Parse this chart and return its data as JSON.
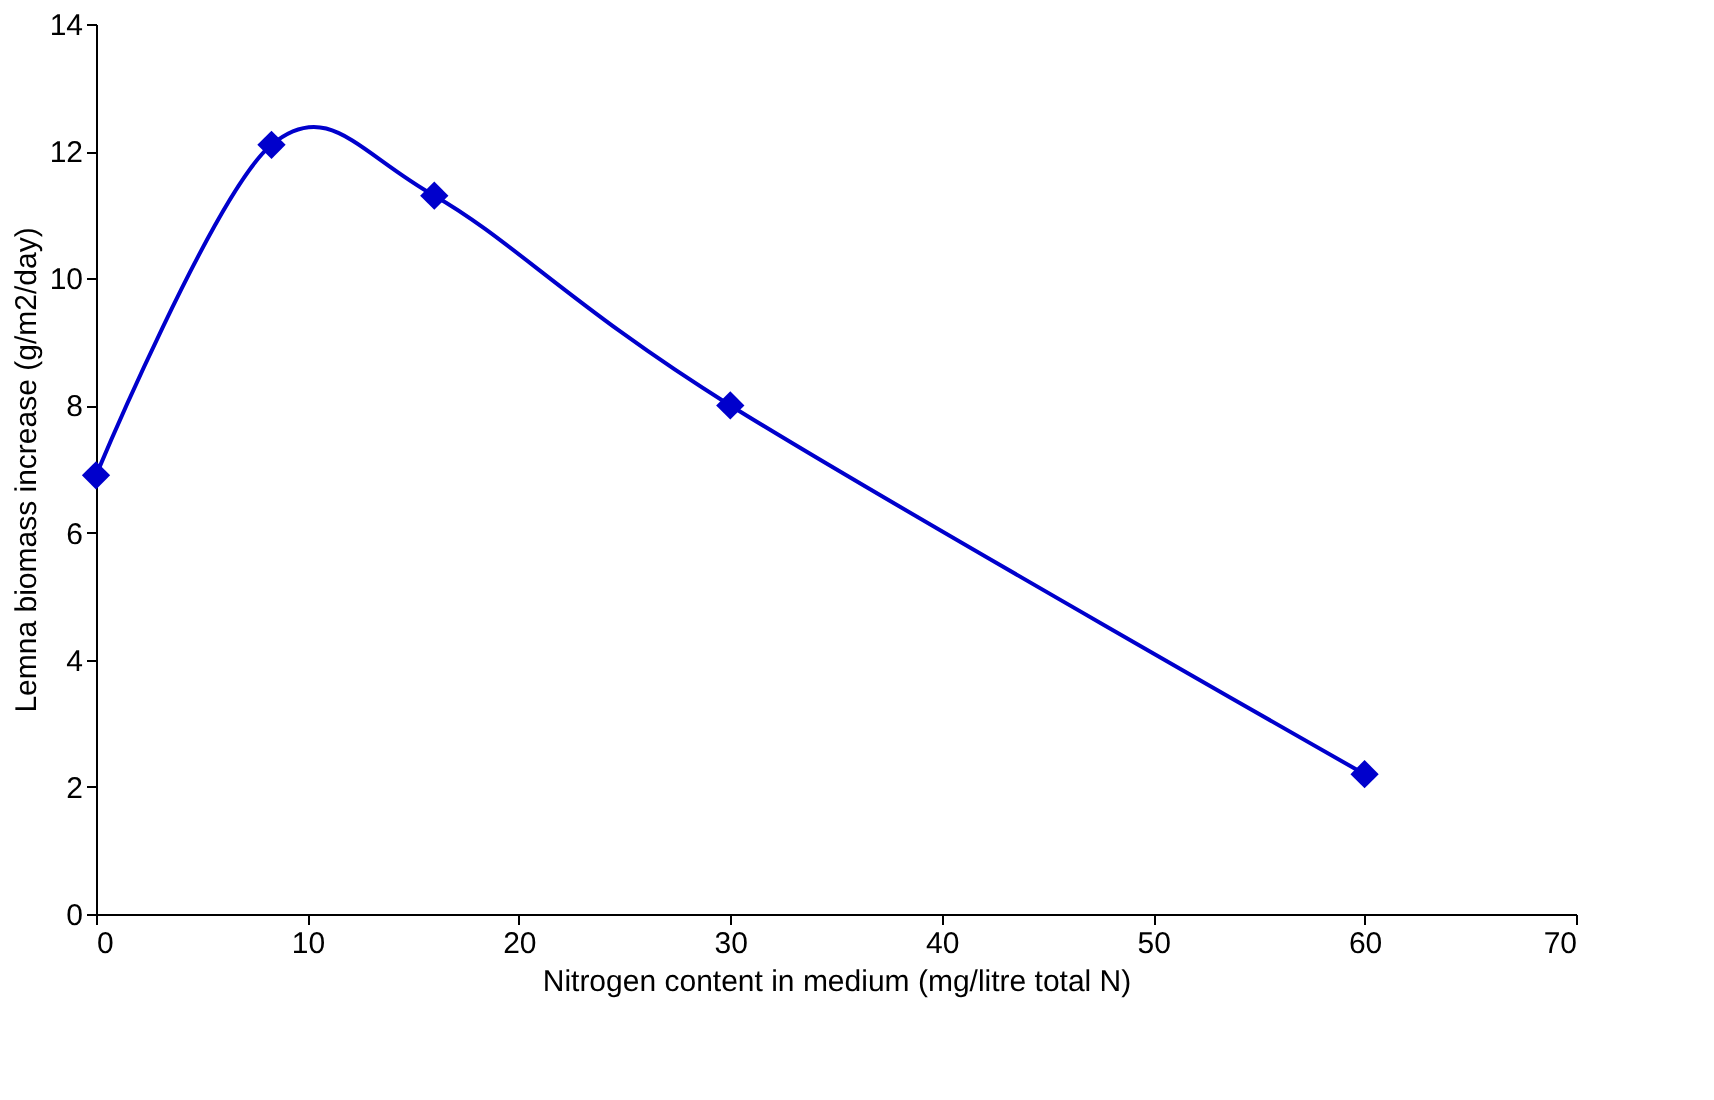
{
  "chart_data": {
    "type": "line",
    "xlabel": "Nitrogen content in medium (mg/litre total N)",
    "ylabel": "Lemna biomass increase (g/m2/day)",
    "x": [
      0,
      8.3,
      16,
      30,
      60
    ],
    "series": [
      {
        "color": "#0000cc",
        "values": [
          6.9,
          12.1,
          11.3,
          8.0,
          2.2
        ]
      }
    ],
    "xlim": [
      0,
      70
    ],
    "xticks": [
      0,
      10,
      20,
      30,
      40,
      50,
      60,
      70
    ],
    "ylim": [
      0,
      14
    ],
    "yticks": [
      0,
      2,
      4,
      6,
      8,
      10,
      12,
      14
    ],
    "grid": false,
    "marker": "diamond",
    "line_style": "solid"
  }
}
